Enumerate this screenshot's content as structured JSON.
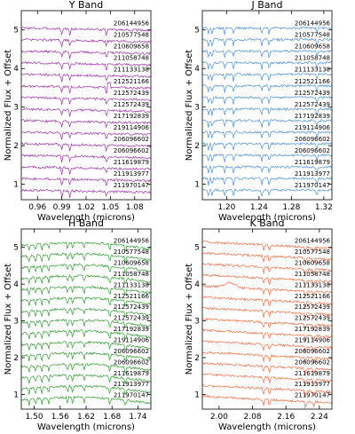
{
  "chart_data": [
    {
      "type": "line",
      "title": "Y Band",
      "xlabel": "Wavelength (microns)",
      "ylabel": "Normalized Flux + Offset",
      "xlim": [
        0.94,
        1.1
      ],
      "ylim": [
        0.6,
        5.5
      ],
      "xticks": [
        "0.96",
        "0.99",
        "1.02",
        "1.05",
        "1.08"
      ],
      "yticks": [
        "1",
        "2",
        "3",
        "4",
        "5"
      ],
      "color": "#a02fb0",
      "stars": [
        "206144956",
        "210577548",
        "210609658",
        "211058748",
        "211133138",
        "212521166",
        "212572439",
        "212572439",
        "217192839",
        "219114906",
        "206096602",
        "206096602",
        "211619879",
        "211913977",
        "211970147"
      ]
    },
    {
      "type": "line",
      "title": "J Band",
      "xlabel": "Wavelength (microns)",
      "ylabel": "Normalized Flux + Offset",
      "xlim": [
        1.17,
        1.33
      ],
      "ylim": [
        0.6,
        5.5
      ],
      "xticks": [
        "1.20",
        "1.24",
        "1.28",
        "1.32"
      ],
      "yticks": [
        "1",
        "2",
        "3",
        "4",
        "5"
      ],
      "color": "#4a90e2",
      "stars": [
        "206144956",
        "210577548",
        "210609658",
        "211058748",
        "211133138",
        "212521166",
        "212572439",
        "212572439",
        "217192839",
        "219114906",
        "206096602",
        "206096602",
        "211619879",
        "211913977",
        "211970147"
      ]
    },
    {
      "type": "line",
      "title": "H Band",
      "xlabel": "Wavelength (microns)",
      "ylabel": "Normalized Flux + Offset",
      "xlim": [
        1.47,
        1.77
      ],
      "ylim": [
        0.6,
        5.5
      ],
      "xticks": [
        "1.50",
        "1.56",
        "1.62",
        "1.68",
        "1.74"
      ],
      "yticks": [
        "1",
        "2",
        "3",
        "4",
        "5"
      ],
      "color": "#2ca02c",
      "stars": [
        "206144956",
        "210577548",
        "210609658",
        "211058748",
        "211133138",
        "212521166",
        "212572439",
        "212572439",
        "217192839",
        "219114906",
        "206096602",
        "206096602",
        "211619879",
        "211913977",
        "211970147"
      ]
    },
    {
      "type": "line",
      "title": "K Band",
      "xlabel": "Wavelength (microns)",
      "ylabel": "Normalized Flux + Offset",
      "xlim": [
        1.96,
        2.27
      ],
      "ylim": [
        0.6,
        5.5
      ],
      "xticks": [
        "2.00",
        "2.08",
        "2.16",
        "2.24"
      ],
      "yticks": [
        "1",
        "2",
        "3",
        "4",
        "5"
      ],
      "color": "#ff6a3d",
      "stars": [
        "206144956",
        "210577548",
        "210609658",
        "211058748",
        "211133138",
        "212521166",
        "212572439",
        "212572439",
        "217192839",
        "219114906",
        "206096602",
        "206096602",
        "211619879",
        "211913977",
        "211970147"
      ]
    }
  ]
}
